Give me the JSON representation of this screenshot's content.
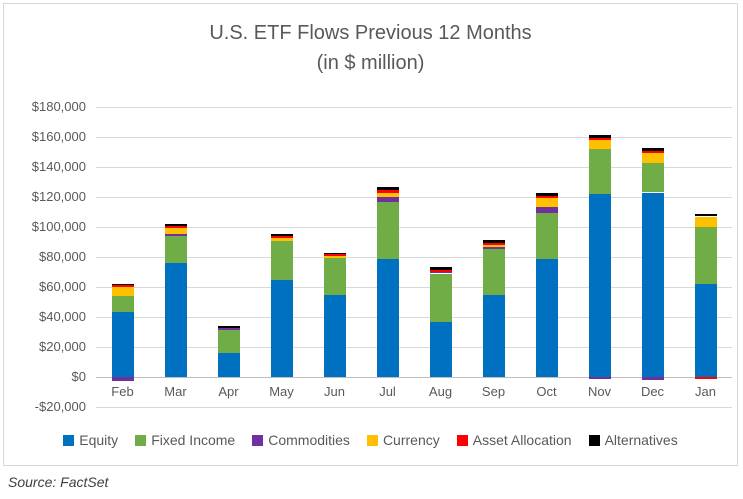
{
  "title": {
    "line1": "U.S. ETF Flows Previous 12 Months",
    "line2": "(in $ million)"
  },
  "source_note": "Source: FactSet",
  "colors": {
    "equity": "#0070C0",
    "fixed_income": "#70AD47",
    "commodities": "#7030A0",
    "currency": "#FFC000",
    "asset_allocation": "#FF0000",
    "alternatives": "#000000",
    "gridline": "#D9D9D9",
    "axis_line": "#BFBFBF",
    "text": "#595959"
  },
  "chart_data": {
    "type": "bar",
    "stacked": true,
    "title": "U.S. ETF Flows Previous 12 Months",
    "subtitle": "(in $ million)",
    "xlabel": "",
    "ylabel": "",
    "ylim": [
      -20000,
      180000
    ],
    "ytick_step": 20000,
    "ytick_labels": [
      "$180,000",
      "$160,000",
      "$140,000",
      "$120,000",
      "$100,000",
      "$80,000",
      "$60,000",
      "$40,000",
      "$20,000",
      "$0",
      "-$20,000"
    ],
    "grid": true,
    "legend_position": "bottom",
    "categories": [
      "Feb",
      "Mar",
      "Apr",
      "May",
      "Jun",
      "Jul",
      "Aug",
      "Sep",
      "Oct",
      "Nov",
      "Dec",
      "Jan"
    ],
    "series": [
      {
        "name": "Equity",
        "color": "#0070C0",
        "values": [
          43300,
          76000,
          16000,
          65000,
          54500,
          79000,
          37000,
          54500,
          78400,
          122000,
          123000,
          62000
        ]
      },
      {
        "name": "Fixed Income",
        "color": "#70AD47",
        "values": [
          10700,
          18000,
          15500,
          25500,
          25000,
          37500,
          32000,
          30800,
          30800,
          30000,
          19400,
          38300
        ]
      },
      {
        "name": "Commodities",
        "color": "#7030A0",
        "values": [
          -2700,
          1300,
          1300,
          0,
          0,
          3500,
          1100,
          1300,
          4000,
          -1500,
          -2000,
          0
        ]
      },
      {
        "name": "Currency",
        "color": "#FFC000",
        "values": [
          6000,
          4000,
          0,
          2200,
          1100,
          2700,
          0,
          1500,
          6000,
          6200,
          7100,
          6700
        ]
      },
      {
        "name": "Asset Allocation",
        "color": "#FF0000",
        "values": [
          1300,
          1300,
          0,
          1100,
          1100,
          2200,
          1100,
          1100,
          1300,
          1300,
          1300,
          -1500
        ]
      },
      {
        "name": "Alternatives",
        "color": "#000000",
        "values": [
          1000,
          1300,
          1300,
          1500,
          1300,
          1800,
          2000,
          2000,
          2000,
          1800,
          1800,
          1800
        ]
      }
    ]
  }
}
